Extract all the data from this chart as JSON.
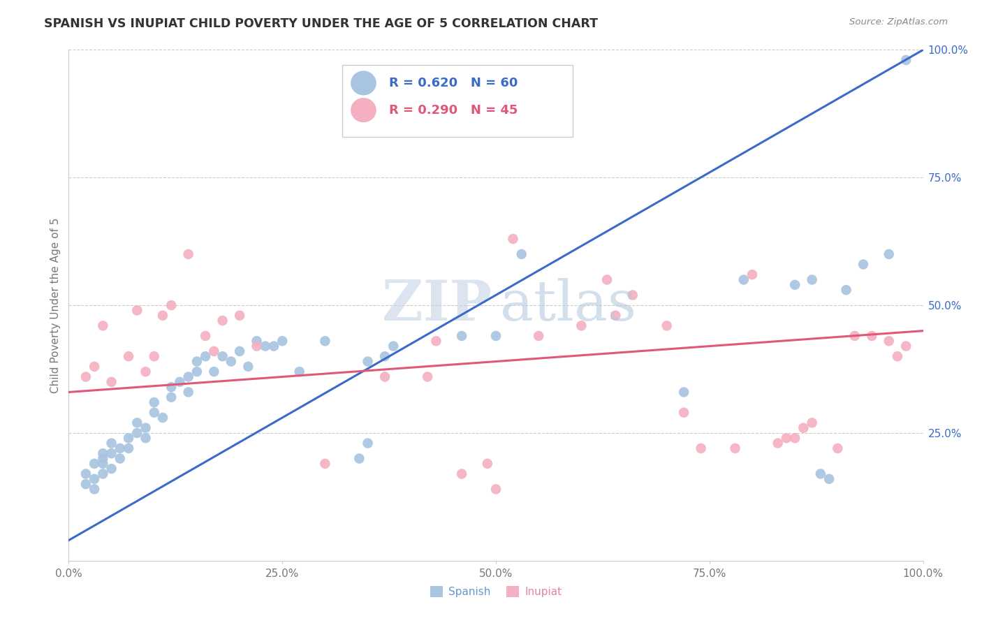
{
  "title": "SPANISH VS INUPIAT CHILD POVERTY UNDER THE AGE OF 5 CORRELATION CHART",
  "source": "Source: ZipAtlas.com",
  "ylabel": "Child Poverty Under the Age of 5",
  "xlim": [
    0,
    1.0
  ],
  "ylim": [
    0,
    1.0
  ],
  "xticks": [
    0.0,
    0.25,
    0.5,
    0.75,
    1.0
  ],
  "xtick_labels": [
    "0.0%",
    "25.0%",
    "50.0%",
    "75.0%",
    "100.0%"
  ],
  "ytick_labels_right": [
    "25.0%",
    "50.0%",
    "75.0%",
    "100.0%"
  ],
  "ytick_positions_right": [
    0.25,
    0.5,
    0.75,
    1.0
  ],
  "spanish_color": "#a8c4e0",
  "inupiat_color": "#f4afc0",
  "spanish_line_color": "#3a6bc8",
  "inupiat_line_color": "#e05878",
  "legend_R_spanish": "R = 0.620",
  "legend_N_spanish": "N = 60",
  "legend_R_inupiat": "R = 0.290",
  "legend_N_inupiat": "N = 45",
  "background_color": "#ffffff",
  "spanish_x": [
    0.02,
    0.02,
    0.03,
    0.03,
    0.03,
    0.04,
    0.04,
    0.04,
    0.04,
    0.05,
    0.05,
    0.05,
    0.06,
    0.06,
    0.07,
    0.07,
    0.08,
    0.08,
    0.09,
    0.09,
    0.1,
    0.1,
    0.11,
    0.12,
    0.12,
    0.13,
    0.14,
    0.14,
    0.15,
    0.15,
    0.16,
    0.17,
    0.18,
    0.19,
    0.2,
    0.21,
    0.22,
    0.23,
    0.24,
    0.25,
    0.27,
    0.3,
    0.34,
    0.35,
    0.35,
    0.37,
    0.38,
    0.46,
    0.5,
    0.53,
    0.72,
    0.79,
    0.85,
    0.87,
    0.88,
    0.89,
    0.91,
    0.93,
    0.96,
    0.98
  ],
  "spanish_y": [
    0.17,
    0.15,
    0.19,
    0.16,
    0.14,
    0.21,
    0.19,
    0.17,
    0.2,
    0.21,
    0.18,
    0.23,
    0.22,
    0.2,
    0.24,
    0.22,
    0.27,
    0.25,
    0.26,
    0.24,
    0.29,
    0.31,
    0.28,
    0.32,
    0.34,
    0.35,
    0.33,
    0.36,
    0.37,
    0.39,
    0.4,
    0.37,
    0.4,
    0.39,
    0.41,
    0.38,
    0.43,
    0.42,
    0.42,
    0.43,
    0.37,
    0.43,
    0.2,
    0.23,
    0.39,
    0.4,
    0.42,
    0.44,
    0.44,
    0.6,
    0.33,
    0.55,
    0.54,
    0.55,
    0.17,
    0.16,
    0.53,
    0.58,
    0.6,
    0.98
  ],
  "inupiat_x": [
    0.02,
    0.03,
    0.04,
    0.05,
    0.07,
    0.08,
    0.09,
    0.1,
    0.11,
    0.12,
    0.14,
    0.16,
    0.17,
    0.18,
    0.2,
    0.22,
    0.3,
    0.37,
    0.42,
    0.43,
    0.46,
    0.49,
    0.5,
    0.52,
    0.55,
    0.6,
    0.63,
    0.64,
    0.66,
    0.7,
    0.72,
    0.74,
    0.78,
    0.8,
    0.83,
    0.84,
    0.85,
    0.86,
    0.87,
    0.9,
    0.92,
    0.94,
    0.96,
    0.97,
    0.98
  ],
  "inupiat_y": [
    0.36,
    0.38,
    0.46,
    0.35,
    0.4,
    0.49,
    0.37,
    0.4,
    0.48,
    0.5,
    0.6,
    0.44,
    0.41,
    0.47,
    0.48,
    0.42,
    0.19,
    0.36,
    0.36,
    0.43,
    0.17,
    0.19,
    0.14,
    0.63,
    0.44,
    0.46,
    0.55,
    0.48,
    0.52,
    0.46,
    0.29,
    0.22,
    0.22,
    0.56,
    0.23,
    0.24,
    0.24,
    0.26,
    0.27,
    0.22,
    0.44,
    0.44,
    0.43,
    0.4,
    0.42
  ],
  "spanish_line_x": [
    0.0,
    1.0
  ],
  "spanish_line_y": [
    0.04,
    1.0
  ],
  "inupiat_line_x": [
    0.0,
    1.0
  ],
  "inupiat_line_y": [
    0.33,
    0.45
  ]
}
